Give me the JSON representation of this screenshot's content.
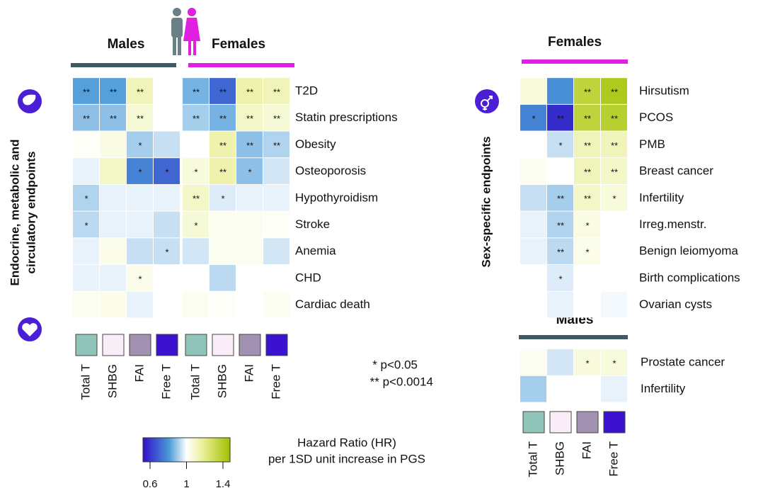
{
  "left_panel": {
    "y_label": [
      "Endocrine, metabolic and",
      "circulatory endpoints"
    ],
    "group_labels": [
      "Males",
      "Females"
    ],
    "endpoints": [
      "T2D",
      "Statin prescriptions",
      "Obesity",
      "Osteoporosis",
      "Hypothyroidism",
      "Stroke",
      "Anemia",
      "CHD",
      "Cardiac death"
    ],
    "columns": [
      "Total T",
      "SHBG",
      "FAI",
      "Free T",
      "Total T",
      "SHBG",
      "FAI",
      "Free T"
    ],
    "hr": [
      [
        0.85,
        0.85,
        1.1,
        1.0,
        0.88,
        0.75,
        1.12,
        1.1
      ],
      [
        0.9,
        0.9,
        1.06,
        1.0,
        0.92,
        0.88,
        1.08,
        1.06
      ],
      [
        1.01,
        1.04,
        0.92,
        0.95,
        1.0,
        1.12,
        0.9,
        0.93
      ],
      [
        0.98,
        1.08,
        0.8,
        0.75,
        1.05,
        1.12,
        0.9,
        0.96
      ],
      [
        0.93,
        0.98,
        0.98,
        0.98,
        1.08,
        0.97,
        0.98,
        0.98
      ],
      [
        0.94,
        0.98,
        0.98,
        0.95,
        1.06,
        1.02,
        1.02,
        1.01
      ],
      [
        0.98,
        1.03,
        0.95,
        0.95,
        0.96,
        1.02,
        1.02,
        0.96
      ],
      [
        0.98,
        0.98,
        1.03,
        1.0,
        1.0,
        0.94,
        1.0,
        1.0
      ],
      [
        1.02,
        1.03,
        0.98,
        1.0,
        1.02,
        1.01,
        1.0,
        1.02
      ]
    ],
    "stars": [
      [
        "**",
        "**",
        "**",
        null,
        "**",
        "**",
        "**",
        "**"
      ],
      [
        "**",
        "**",
        "**",
        null,
        "**",
        "**",
        "**",
        "**"
      ],
      [
        null,
        null,
        "*",
        null,
        null,
        "**",
        "**",
        "**"
      ],
      [
        null,
        null,
        "*",
        "*",
        "*",
        "**",
        "*",
        null
      ],
      [
        "*",
        null,
        null,
        null,
        "**",
        "*",
        null,
        null
      ],
      [
        "*",
        null,
        null,
        null,
        "*",
        null,
        null,
        null
      ],
      [
        null,
        null,
        null,
        "*",
        null,
        null,
        null,
        null
      ],
      [
        null,
        null,
        "*",
        null,
        null,
        null,
        null,
        null
      ],
      [
        null,
        null,
        null,
        null,
        null,
        null,
        null,
        null
      ]
    ]
  },
  "right_panel": {
    "y_label": "Sex-specific endpoints",
    "columns": [
      "Total T",
      "SHBG",
      "FAI",
      "Free T"
    ],
    "females": {
      "title": "Females",
      "endpoints": [
        "Hirsutism",
        "PCOS",
        "PMB",
        "Breast cancer",
        "Infertility",
        "Irreg.menstr.",
        "Benign leiomyoma",
        "Birth complications",
        "Ovarian cysts"
      ],
      "hr": [
        [
          1.05,
          0.82,
          1.3,
          1.35
        ],
        [
          0.8,
          0.65,
          1.3,
          1.32
        ],
        [
          1.0,
          0.95,
          1.1,
          1.1
        ],
        [
          1.02,
          1.0,
          1.1,
          1.08
        ],
        [
          0.95,
          0.92,
          1.08,
          1.05
        ],
        [
          0.98,
          0.93,
          1.04,
          1.0
        ],
        [
          0.98,
          0.94,
          1.03,
          1.0
        ],
        [
          1.0,
          0.97,
          1.0,
          1.0
        ],
        [
          1.0,
          0.98,
          1.0,
          0.99
        ]
      ],
      "stars": [
        [
          null,
          null,
          "**",
          "**"
        ],
        [
          "*",
          "**",
          "**",
          "**"
        ],
        [
          null,
          "*",
          "**",
          "**"
        ],
        [
          null,
          null,
          "**",
          "**"
        ],
        [
          null,
          "**",
          "**",
          "*"
        ],
        [
          null,
          "**",
          "*",
          null
        ],
        [
          null,
          "**",
          "*",
          null
        ],
        [
          null,
          "*",
          null,
          null
        ],
        [
          null,
          null,
          null,
          null
        ]
      ]
    },
    "males": {
      "title": "Males",
      "endpoints": [
        "Prostate cancer",
        "Infertility"
      ],
      "hr": [
        [
          1.02,
          0.96,
          1.05,
          1.05
        ],
        [
          0.92,
          1.0,
          1.0,
          0.98
        ]
      ],
      "stars": [
        [
          null,
          null,
          "*",
          "*"
        ],
        [
          null,
          null,
          null,
          null
        ]
      ]
    }
  },
  "column_colors": [
    "#8fc4b8",
    "#f9eef8",
    "#a291b1",
    "#3a12cf"
  ],
  "significance_legend": [
    "* p<0.05",
    "** p<0.0014"
  ],
  "colorbar": {
    "title": [
      "Hazard Ratio (HR)",
      "per 1SD unit increase in PGS"
    ],
    "range": [
      0.6,
      1.4
    ],
    "ticks": [
      0.6,
      1,
      1.4
    ]
  }
}
